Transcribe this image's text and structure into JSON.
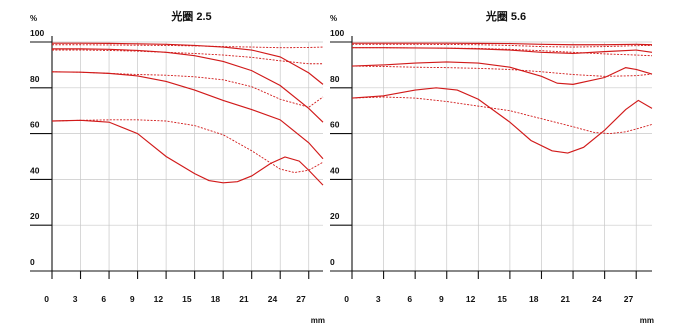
{
  "chart_data": [
    {
      "type": "line",
      "title": "光圈  2.5",
      "ylabel": "%",
      "xlabel": "mm",
      "xlim": [
        0,
        28.5
      ],
      "ylim": [
        0,
        100
      ],
      "x_ticks": [
        0,
        3,
        6,
        9,
        12,
        15,
        18,
        21,
        24,
        27
      ],
      "y_ticks": [
        0,
        20,
        40,
        60,
        80,
        100
      ],
      "grid": true,
      "series": [
        {
          "style": "solid",
          "x": [
            0,
            3,
            6,
            9,
            12,
            15,
            18,
            21,
            24,
            27,
            28.5
          ],
          "y": [
            99.5,
            99.5,
            99.4,
            99.2,
            99.0,
            98.5,
            97.8,
            96.5,
            93.5,
            86.5,
            81.5
          ]
        },
        {
          "style": "dashed",
          "x": [
            0,
            3,
            6,
            9,
            12,
            15,
            18,
            21,
            24,
            27,
            28.5
          ],
          "y": [
            98.8,
            98.8,
            98.7,
            98.6,
            98.5,
            98.3,
            98.0,
            97.8,
            97.5,
            97.6,
            97.8
          ]
        },
        {
          "style": "solid",
          "x": [
            0,
            3,
            6,
            9,
            12,
            15,
            18,
            21,
            24,
            27,
            28.5
          ],
          "y": [
            97.0,
            97.0,
            96.8,
            96.3,
            95.5,
            94.0,
            91.5,
            87.5,
            81.0,
            71.0,
            65.0
          ]
        },
        {
          "style": "dashed",
          "x": [
            0,
            3,
            6,
            9,
            12,
            15,
            18,
            21,
            24,
            27,
            28.5
          ],
          "y": [
            96.5,
            96.5,
            96.3,
            96.0,
            95.5,
            95.0,
            94.3,
            93.3,
            91.8,
            90.5,
            90.5
          ]
        },
        {
          "style": "solid",
          "x": [
            0,
            3,
            6,
            9,
            12,
            15,
            18,
            21,
            24,
            27,
            28.5
          ],
          "y": [
            87.0,
            86.8,
            86.3,
            85.2,
            82.8,
            79.0,
            74.5,
            70.5,
            66.0,
            56.0,
            49.0
          ]
        },
        {
          "style": "dashed",
          "x": [
            0,
            3,
            6,
            9,
            12,
            15,
            18,
            21,
            24,
            27,
            28.5
          ],
          "y": [
            87.0,
            86.8,
            86.3,
            85.8,
            85.5,
            84.8,
            83.5,
            80.5,
            75.0,
            71.5,
            76.0
          ]
        },
        {
          "style": "solid",
          "x": [
            0,
            3,
            6,
            9,
            12,
            15,
            16.5,
            18,
            19.5,
            21,
            23,
            24.5,
            26,
            27,
            28.5
          ],
          "y": [
            65.5,
            65.8,
            65.0,
            60.0,
            50.0,
            42.5,
            39.5,
            38.5,
            39.0,
            41.5,
            47.0,
            49.8,
            48.0,
            44.0,
            37.5
          ]
        },
        {
          "style": "dashed",
          "x": [
            0,
            3,
            6,
            9,
            12,
            15,
            18,
            21,
            24,
            25.5,
            27,
            28.5
          ],
          "y": [
            65.5,
            65.8,
            66.0,
            66.0,
            65.5,
            63.5,
            59.5,
            52.5,
            44.5,
            43.0,
            44.0,
            47.5
          ]
        }
      ]
    },
    {
      "type": "line",
      "title": "光圈  5.6",
      "ylabel": "%",
      "xlabel": "mm",
      "xlim": [
        0,
        28.5
      ],
      "ylim": [
        0,
        100
      ],
      "x_ticks": [
        0,
        3,
        6,
        9,
        12,
        15,
        18,
        21,
        24,
        27
      ],
      "y_ticks": [
        0,
        20,
        40,
        60,
        80,
        100
      ],
      "grid": true,
      "series": [
        {
          "style": "solid",
          "x": [
            0,
            3,
            6,
            9,
            12,
            15,
            18,
            21,
            24,
            27,
            28.5
          ],
          "y": [
            99.5,
            99.5,
            99.5,
            99.5,
            99.4,
            99.3,
            99.0,
            98.8,
            98.8,
            99.0,
            98.8
          ]
        },
        {
          "style": "dashed",
          "x": [
            0,
            3,
            6,
            9,
            12,
            15,
            18,
            21,
            24,
            27,
            28.5
          ],
          "y": [
            99.0,
            99.0,
            99.0,
            98.9,
            98.8,
            98.5,
            98.0,
            97.8,
            98.0,
            98.4,
            98.5
          ]
        },
        {
          "style": "solid",
          "x": [
            0,
            3,
            6,
            9,
            12,
            15,
            18,
            21,
            24,
            27,
            28.5
          ],
          "y": [
            97.5,
            97.5,
            97.4,
            97.3,
            97.0,
            96.5,
            95.5,
            95.0,
            95.8,
            96.5,
            95.5
          ]
        },
        {
          "style": "dashed",
          "x": [
            0,
            3,
            6,
            9,
            12,
            15,
            18,
            21,
            24,
            27,
            28.5
          ],
          "y": [
            97.5,
            97.5,
            97.4,
            97.3,
            97.2,
            96.8,
            96.2,
            95.5,
            94.8,
            94.3,
            94.0
          ]
        },
        {
          "style": "solid",
          "x": [
            0,
            3,
            6,
            9,
            12,
            15,
            18,
            19.5,
            21,
            24,
            26,
            27,
            28.5
          ],
          "y": [
            89.5,
            90.0,
            90.8,
            91.3,
            90.8,
            89.0,
            85.0,
            82.0,
            81.5,
            84.5,
            88.8,
            88.0,
            86.0
          ]
        },
        {
          "style": "dashed",
          "x": [
            0,
            3,
            6,
            9,
            12,
            15,
            18,
            21,
            24,
            27,
            28.5
          ],
          "y": [
            89.5,
            89.3,
            89.0,
            88.8,
            88.5,
            88.0,
            87.0,
            85.8,
            85.0,
            85.3,
            86.0
          ]
        },
        {
          "style": "solid",
          "x": [
            0,
            3,
            6,
            8,
            10,
            12,
            15,
            17,
            19,
            20.5,
            22,
            24,
            26,
            27.2,
            28.5
          ],
          "y": [
            75.5,
            76.5,
            79.0,
            80.0,
            79.0,
            75.0,
            65.0,
            57.0,
            52.5,
            51.5,
            54.0,
            61.5,
            70.5,
            74.5,
            71.0
          ]
        },
        {
          "style": "dashed",
          "x": [
            0,
            3,
            6,
            9,
            12,
            15,
            18,
            21,
            23,
            24.5,
            26,
            27,
            28.5
          ],
          "y": [
            75.5,
            76.0,
            75.5,
            74.0,
            72.0,
            70.0,
            66.5,
            63.0,
            60.5,
            60.0,
            60.8,
            62.0,
            64.0
          ]
        }
      ]
    }
  ]
}
